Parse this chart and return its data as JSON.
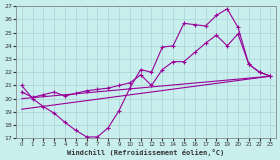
{
  "xlabel": "Windchill (Refroidissement éolien,°C)",
  "xlim": [
    -0.5,
    23.5
  ],
  "ylim": [
    17,
    27
  ],
  "xticks": [
    0,
    1,
    2,
    3,
    4,
    5,
    6,
    7,
    8,
    9,
    10,
    11,
    12,
    13,
    14,
    15,
    16,
    17,
    18,
    19,
    20,
    21,
    22,
    23
  ],
  "yticks": [
    17,
    18,
    19,
    20,
    21,
    22,
    23,
    24,
    25,
    26,
    27
  ],
  "bg_color": "#c8eeee",
  "grid_color": "#aad4d4",
  "line_color": "#990099",
  "line1_x": [
    0,
    1,
    2,
    3,
    4,
    5,
    6,
    7,
    8,
    9,
    10,
    11,
    12,
    13,
    14,
    15,
    16,
    17,
    18,
    19,
    20,
    21,
    22,
    23
  ],
  "line1_y": [
    21.0,
    20.0,
    19.4,
    18.9,
    18.2,
    17.6,
    17.1,
    17.1,
    17.8,
    19.1,
    20.8,
    22.2,
    22.0,
    23.9,
    24.0,
    25.7,
    25.6,
    25.5,
    26.3,
    26.8,
    25.4,
    22.6,
    22.0,
    21.7
  ],
  "line2_x": [
    0,
    1,
    2,
    3,
    4,
    5,
    6,
    7,
    8,
    9,
    10,
    11,
    12,
    13,
    14,
    15,
    16,
    17,
    18,
    19,
    20,
    21,
    22,
    23
  ],
  "line2_y": [
    20.5,
    20.1,
    20.3,
    20.5,
    20.2,
    20.4,
    20.6,
    20.7,
    20.8,
    21.0,
    21.2,
    21.8,
    21.0,
    22.2,
    22.8,
    22.8,
    23.5,
    24.2,
    24.8,
    24.0,
    24.9,
    22.6,
    22.0,
    21.7
  ],
  "line3_x": [
    0,
    23
  ],
  "line3_y": [
    20.0,
    21.7
  ],
  "line4_x": [
    0,
    23
  ],
  "line4_y": [
    19.2,
    21.7
  ]
}
